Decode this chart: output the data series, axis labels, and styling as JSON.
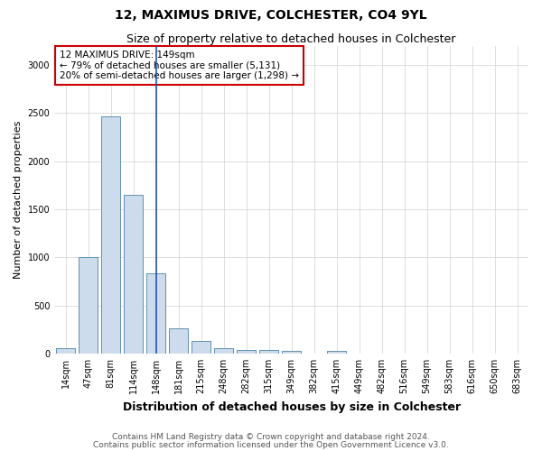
{
  "title1": "12, MAXIMUS DRIVE, COLCHESTER, CO4 9YL",
  "title2": "Size of property relative to detached houses in Colchester",
  "xlabel": "Distribution of detached houses by size in Colchester",
  "ylabel": "Number of detached properties",
  "footer1": "Contains HM Land Registry data © Crown copyright and database right 2024.",
  "footer2": "Contains public sector information licensed under the Open Government Licence v3.0.",
  "annotation_line1": "12 MAXIMUS DRIVE: 149sqm",
  "annotation_line2": "← 79% of detached houses are smaller (5,131)",
  "annotation_line3": "20% of semi-detached houses are larger (1,298) →",
  "bar_color": "#ccdcec",
  "bar_edge_color": "#6090b0",
  "marker_line_color": "#2255aa",
  "annotation_box_color": "#cc0000",
  "categories": [
    "14sqm",
    "47sqm",
    "81sqm",
    "114sqm",
    "148sqm",
    "181sqm",
    "215sqm",
    "248sqm",
    "282sqm",
    "315sqm",
    "349sqm",
    "382sqm",
    "415sqm",
    "449sqm",
    "482sqm",
    "516sqm",
    "549sqm",
    "583sqm",
    "616sqm",
    "650sqm",
    "683sqm"
  ],
  "values": [
    55,
    1000,
    2460,
    1650,
    830,
    265,
    130,
    60,
    40,
    35,
    30,
    0,
    30,
    0,
    0,
    0,
    0,
    0,
    0,
    0,
    0
  ],
  "ylim": [
    0,
    3200
  ],
  "yticks": [
    0,
    500,
    1000,
    1500,
    2000,
    2500,
    3000
  ],
  "property_bin_index": 4,
  "title1_fontsize": 10,
  "title2_fontsize": 9,
  "xlabel_fontsize": 9,
  "ylabel_fontsize": 8,
  "tick_fontsize": 7,
  "annotation_fontsize": 7.5,
  "footer_fontsize": 6.5
}
